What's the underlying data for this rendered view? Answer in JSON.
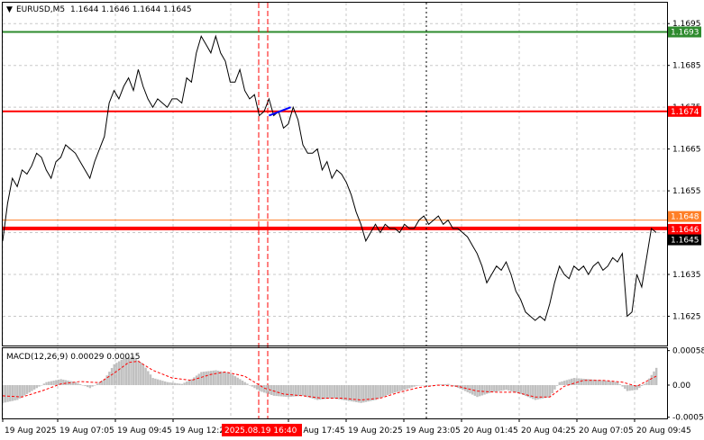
{
  "header": {
    "symbol": "EURUSD,M5",
    "ohlc": "1.1644 1.1646 1.1644 1.1645"
  },
  "macd_label": "MACD(12,26,9) 0.00029 0.00015",
  "colors": {
    "price_line": "#000000",
    "green_level": "#2e8b2e",
    "red_level": "#ff0000",
    "orange_level": "#ff7f27",
    "trend_segment": "#0000ff",
    "histogram": "#c0c0c0",
    "signal": "#ff0000",
    "grid": "#c8c8c8",
    "current_price_tag": "#000000"
  },
  "chart_data": [
    {
      "type": "line",
      "title": "EURUSD,M5",
      "ylim": [
        1.1618,
        1.17
      ],
      "y_ticks": [
        "1.1695",
        "1.1685",
        "1.1675",
        "1.1665",
        "1.1655",
        "1.1635",
        "1.1625"
      ],
      "x_ticks": [
        "19 Aug 2025",
        "19 Aug 07:05",
        "19 Aug 09:45",
        "19 Aug 12:25",
        "19 Aug 17:45",
        "19 Aug 20:25",
        "19 Aug 23:05",
        "20 Aug 01:45",
        "20 Aug 04:25",
        "20 Aug 07:05",
        "20 Aug 09:45"
      ],
      "highlighted_time": "2025.08.19 16:40",
      "levels": [
        {
          "value": 1.1693,
          "label": "1.1693",
          "color": "green"
        },
        {
          "value": 1.1674,
          "label": "1.1674",
          "color": "red"
        },
        {
          "value": 1.1648,
          "label": "1.1648",
          "color": "orange"
        },
        {
          "value": 1.1646,
          "label": "1.1646",
          "color": "red"
        },
        {
          "value": 1.1645,
          "label": "1.1645",
          "color": "current"
        }
      ],
      "trend_segment": [
        [
          110,
          1.1673
        ],
        [
          119,
          1.1675
        ]
      ],
      "series": [
        {
          "values": [
            [
              0,
              1.1643
            ],
            [
              2,
              1.1652
            ],
            [
              4,
              1.1658
            ],
            [
              6,
              1.1656
            ],
            [
              8,
              1.166
            ],
            [
              10,
              1.1659
            ],
            [
              12,
              1.1661
            ],
            [
              14,
              1.1664
            ],
            [
              16,
              1.1663
            ],
            [
              18,
              1.166
            ],
            [
              20,
              1.1658
            ],
            [
              22,
              1.1662
            ],
            [
              24,
              1.1663
            ],
            [
              26,
              1.1666
            ],
            [
              28,
              1.1665
            ],
            [
              30,
              1.1664
            ],
            [
              32,
              1.1662
            ],
            [
              34,
              1.166
            ],
            [
              36,
              1.1658
            ],
            [
              38,
              1.1662
            ],
            [
              40,
              1.1665
            ],
            [
              42,
              1.1668
            ],
            [
              44,
              1.1676
            ],
            [
              46,
              1.1679
            ],
            [
              48,
              1.1677
            ],
            [
              50,
              1.168
            ],
            [
              52,
              1.1682
            ],
            [
              54,
              1.1679
            ],
            [
              56,
              1.1684
            ],
            [
              58,
              1.168
            ],
            [
              60,
              1.1677
            ],
            [
              62,
              1.1675
            ],
            [
              64,
              1.1677
            ],
            [
              66,
              1.1676
            ],
            [
              68,
              1.1675
            ],
            [
              70,
              1.1677
            ],
            [
              72,
              1.1677
            ],
            [
              74,
              1.1676
            ],
            [
              76,
              1.1682
            ],
            [
              78,
              1.1681
            ],
            [
              80,
              1.1688
            ],
            [
              82,
              1.1692
            ],
            [
              84,
              1.169
            ],
            [
              86,
              1.1688
            ],
            [
              88,
              1.1692
            ],
            [
              90,
              1.1688
            ],
            [
              92,
              1.1686
            ],
            [
              94,
              1.1681
            ],
            [
              96,
              1.1681
            ],
            [
              98,
              1.1684
            ],
            [
              100,
              1.1679
            ],
            [
              102,
              1.1677
            ],
            [
              104,
              1.1678
            ],
            [
              106,
              1.1673
            ],
            [
              108,
              1.1674
            ],
            [
              110,
              1.1677
            ],
            [
              112,
              1.1673
            ],
            [
              114,
              1.1674
            ],
            [
              116,
              1.167
            ],
            [
              118,
              1.1671
            ],
            [
              120,
              1.1675
            ],
            [
              122,
              1.1672
            ],
            [
              124,
              1.1666
            ],
            [
              126,
              1.1664
            ],
            [
              128,
              1.1664
            ],
            [
              130,
              1.1665
            ],
            [
              132,
              1.166
            ],
            [
              134,
              1.1662
            ],
            [
              136,
              1.1658
            ],
            [
              138,
              1.166
            ],
            [
              140,
              1.1659
            ],
            [
              142,
              1.1657
            ],
            [
              144,
              1.1654
            ],
            [
              146,
              1.165
            ],
            [
              148,
              1.1647
            ],
            [
              150,
              1.1643
            ],
            [
              152,
              1.1645
            ],
            [
              154,
              1.1647
            ],
            [
              156,
              1.1645
            ],
            [
              158,
              1.1647
            ],
            [
              160,
              1.1646
            ],
            [
              162,
              1.1646
            ],
            [
              164,
              1.1645
            ],
            [
              166,
              1.1647
            ],
            [
              168,
              1.1646
            ],
            [
              170,
              1.1646
            ],
            [
              172,
              1.1648
            ],
            [
              174,
              1.1649
            ],
            [
              176,
              1.1647
            ],
            [
              178,
              1.1648
            ],
            [
              180,
              1.1649
            ],
            [
              182,
              1.1647
            ],
            [
              184,
              1.1648
            ],
            [
              186,
              1.1646
            ],
            [
              188,
              1.1646
            ],
            [
              190,
              1.1645
            ],
            [
              192,
              1.1644
            ],
            [
              194,
              1.1642
            ],
            [
              196,
              1.164
            ],
            [
              198,
              1.1637
            ],
            [
              200,
              1.1633
            ],
            [
              202,
              1.1635
            ],
            [
              204,
              1.1637
            ],
            [
              206,
              1.1636
            ],
            [
              208,
              1.1638
            ],
            [
              210,
              1.1635
            ],
            [
              212,
              1.1631
            ],
            [
              214,
              1.1629
            ],
            [
              216,
              1.1626
            ],
            [
              218,
              1.1625
            ],
            [
              220,
              1.1624
            ],
            [
              222,
              1.1625
            ],
            [
              224,
              1.1624
            ],
            [
              226,
              1.1628
            ],
            [
              228,
              1.1633
            ],
            [
              230,
              1.1637
            ],
            [
              232,
              1.1635
            ],
            [
              234,
              1.1634
            ],
            [
              236,
              1.1637
            ],
            [
              238,
              1.1636
            ],
            [
              240,
              1.1637
            ],
            [
              242,
              1.1635
            ],
            [
              244,
              1.1637
            ],
            [
              246,
              1.1638
            ],
            [
              248,
              1.1636
            ],
            [
              250,
              1.1637
            ],
            [
              252,
              1.1639
            ],
            [
              254,
              1.1638
            ],
            [
              256,
              1.164
            ],
            [
              258,
              1.1625
            ],
            [
              260,
              1.1626
            ],
            [
              262,
              1.1635
            ],
            [
              264,
              1.1632
            ],
            [
              266,
              1.1639
            ],
            [
              268,
              1.1646
            ],
            [
              270,
              1.1645
            ]
          ]
        }
      ]
    },
    {
      "type": "bar",
      "title": "MACD(12,26,9) 0.00029 0.00015",
      "ylim": [
        -0.00056,
        0.00062
      ],
      "y_ticks": [
        "0.00058",
        "0.00",
        "-0.00054"
      ],
      "histogram": [
        [
          0,
          -0.0003
        ],
        [
          6,
          -0.00025
        ],
        [
          12,
          -0.0001
        ],
        [
          18,
          5e-05
        ],
        [
          24,
          0.0001
        ],
        [
          30,
          5e-05
        ],
        [
          36,
          -5e-05
        ],
        [
          42,
          0.0001
        ],
        [
          46,
          0.00035
        ],
        [
          50,
          0.00045
        ],
        [
          54,
          0.00048
        ],
        [
          58,
          0.00035
        ],
        [
          62,
          0.00012
        ],
        [
          68,
          5e-05
        ],
        [
          74,
          2e-05
        ],
        [
          78,
          0.0001
        ],
        [
          82,
          0.00022
        ],
        [
          88,
          0.00025
        ],
        [
          94,
          0.0002
        ],
        [
          100,
          5e-05
        ],
        [
          106,
          -0.0001
        ],
        [
          112,
          -0.00018
        ],
        [
          118,
          -0.0002
        ],
        [
          124,
          -0.00018
        ],
        [
          130,
          -0.00025
        ],
        [
          136,
          -0.00022
        ],
        [
          142,
          -0.00026
        ],
        [
          148,
          -0.0003
        ],
        [
          154,
          -0.00025
        ],
        [
          160,
          -0.00015
        ],
        [
          166,
          -8e-05
        ],
        [
          172,
          0.0
        ],
        [
          178,
          0.0
        ],
        [
          184,
          2e-05
        ],
        [
          190,
          -8e-05
        ],
        [
          196,
          -0.0002
        ],
        [
          202,
          -0.00012
        ],
        [
          208,
          -8e-05
        ],
        [
          214,
          -0.00015
        ],
        [
          220,
          -0.00025
        ],
        [
          226,
          -0.0002
        ],
        [
          230,
          5e-05
        ],
        [
          236,
          0.00012
        ],
        [
          242,
          0.0001
        ],
        [
          248,
          8e-05
        ],
        [
          254,
          5e-05
        ],
        [
          258,
          -0.0001
        ],
        [
          262,
          -8e-05
        ],
        [
          266,
          5e-05
        ],
        [
          270,
          0.00029
        ]
      ],
      "signal": [
        [
          0,
          -0.00018
        ],
        [
          8,
          -0.0002
        ],
        [
          16,
          -0.0001
        ],
        [
          24,
          2e-05
        ],
        [
          32,
          6e-05
        ],
        [
          40,
          4e-05
        ],
        [
          46,
          0.0002
        ],
        [
          52,
          0.00038
        ],
        [
          56,
          0.0004
        ],
        [
          62,
          0.00025
        ],
        [
          70,
          0.00012
        ],
        [
          78,
          8e-05
        ],
        [
          86,
          0.00018
        ],
        [
          92,
          0.00022
        ],
        [
          100,
          0.00015
        ],
        [
          108,
          -5e-05
        ],
        [
          116,
          -0.00015
        ],
        [
          124,
          -0.00018
        ],
        [
          132,
          -0.00022
        ],
        [
          140,
          -0.00022
        ],
        [
          148,
          -0.00025
        ],
        [
          156,
          -0.00022
        ],
        [
          164,
          -0.00012
        ],
        [
          172,
          -4e-05
        ],
        [
          180,
          0.0
        ],
        [
          188,
          -2e-05
        ],
        [
          196,
          -0.0001
        ],
        [
          204,
          -0.00012
        ],
        [
          212,
          -0.00012
        ],
        [
          220,
          -0.0002
        ],
        [
          226,
          -0.0002
        ],
        [
          232,
          -2e-05
        ],
        [
          240,
          8e-05
        ],
        [
          248,
          8e-05
        ],
        [
          256,
          5e-05
        ],
        [
          262,
          -2e-05
        ],
        [
          270,
          0.00015
        ]
      ]
    }
  ]
}
